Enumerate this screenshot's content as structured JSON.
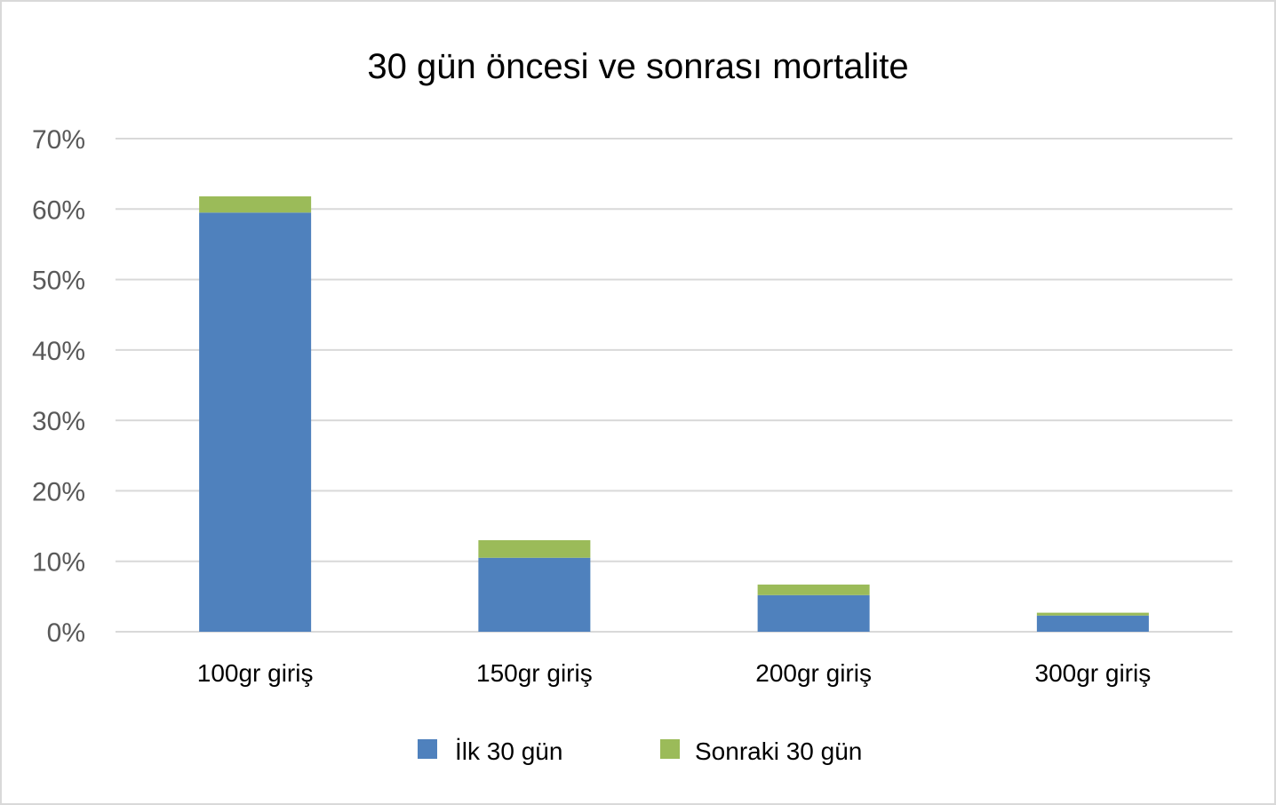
{
  "chart_data": {
    "type": "bar",
    "stacked": true,
    "title": "30 gün öncesi ve sonrası mortalite",
    "xlabel": "",
    "ylabel": "",
    "categories": [
      "100gr giriş",
      "150gr giriş",
      "200gr giriş",
      "300gr giriş"
    ],
    "series": [
      {
        "name": "İlk 30 gün",
        "color": "#4f81bd",
        "values": [
          59.5,
          10.5,
          5.2,
          2.3
        ]
      },
      {
        "name": "Sonraki 30 gün",
        "color": "#9bbb59",
        "values": [
          2.3,
          2.5,
          1.5,
          0.4
        ]
      }
    ],
    "ylim": [
      0,
      70
    ],
    "yticks": [
      "0%",
      "10%",
      "20%",
      "30%",
      "40%",
      "50%",
      "60%",
      "70%"
    ],
    "grid": true,
    "legend": "bottom"
  }
}
